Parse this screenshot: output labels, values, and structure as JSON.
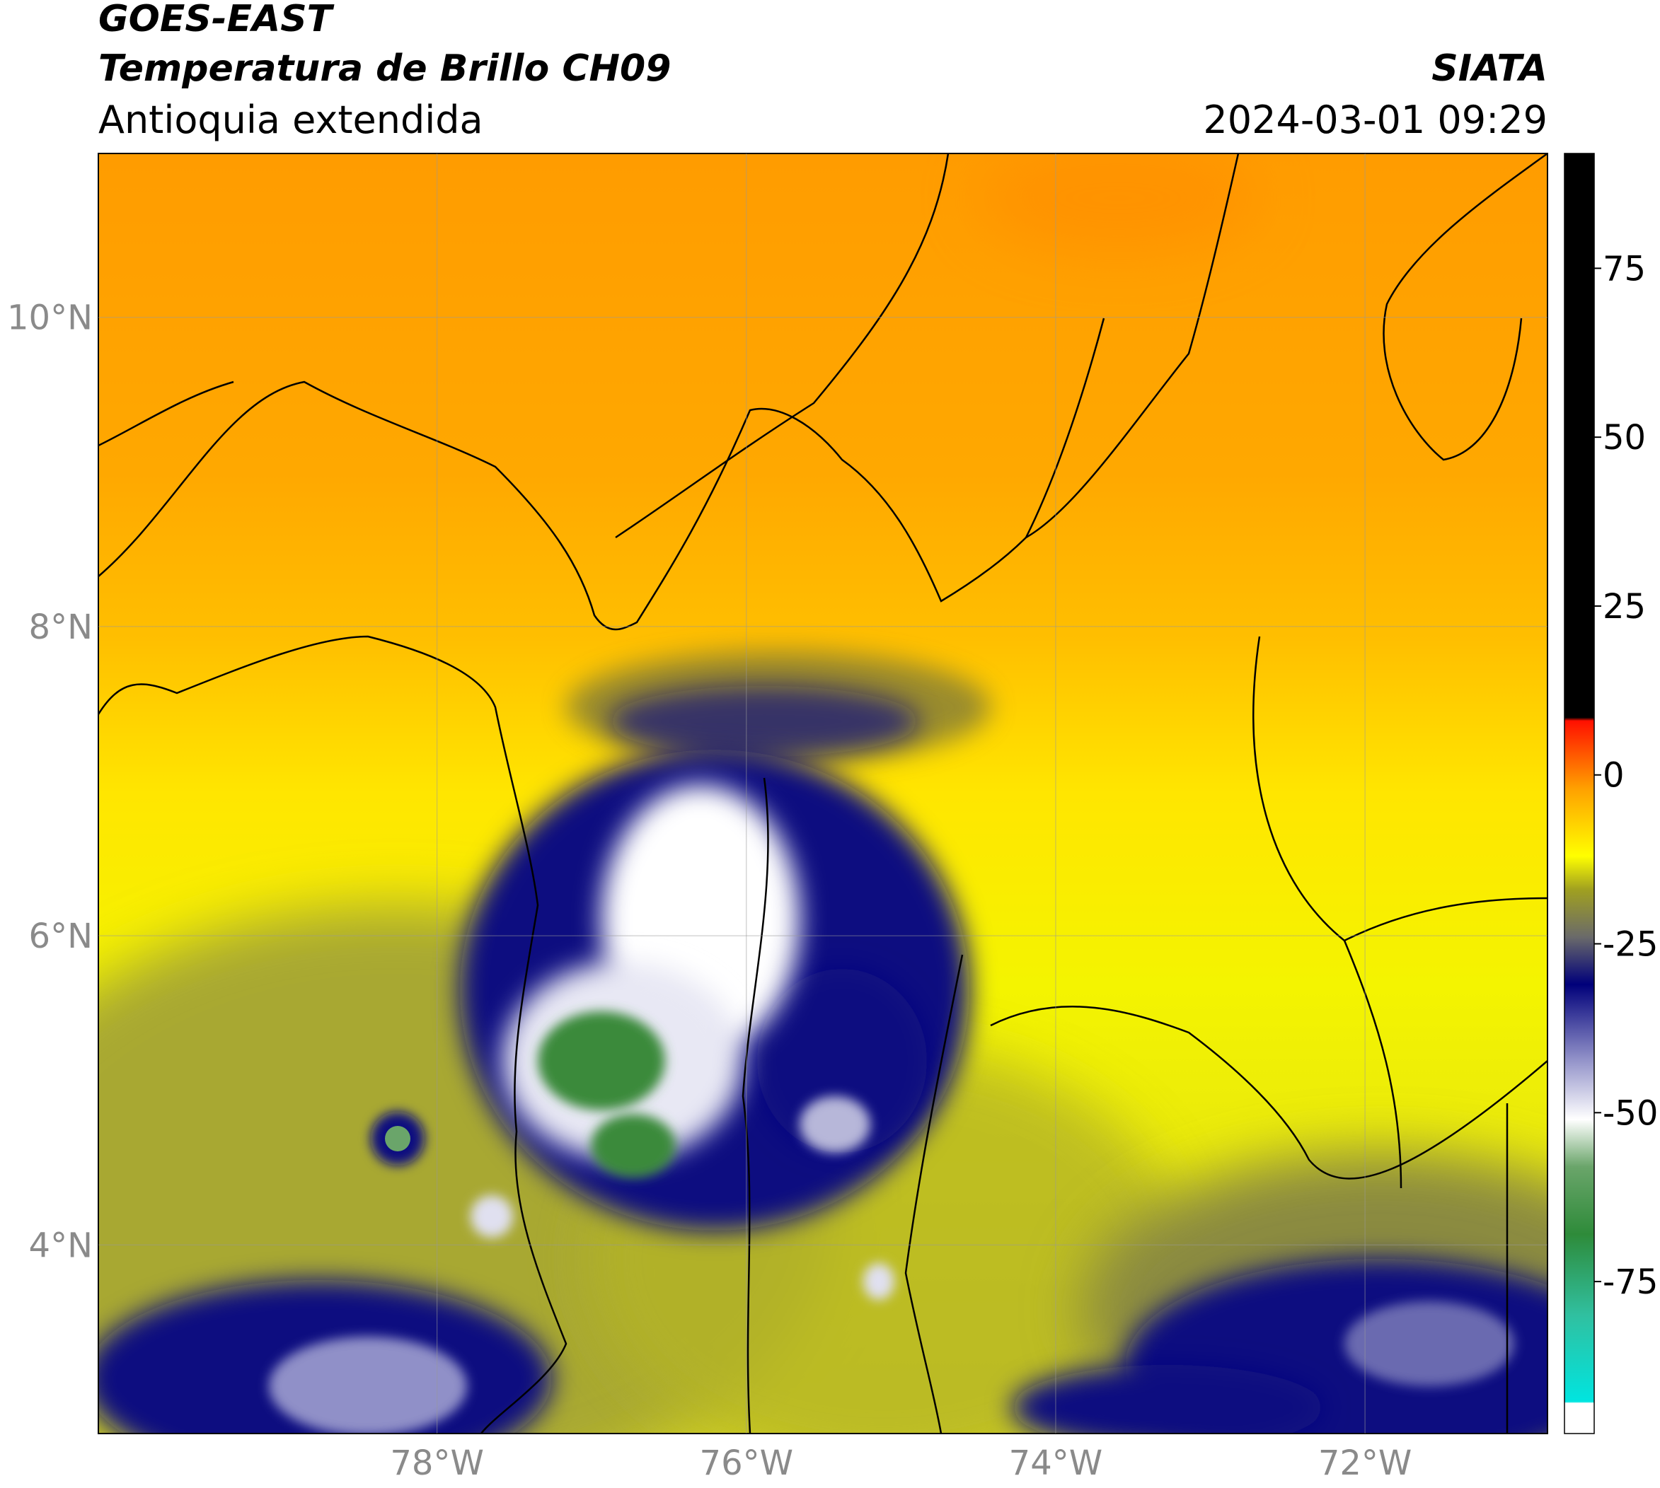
{
  "chart_data": {
    "type": "map",
    "title": [
      "GOES-EAST",
      "Temperatura de Brillo CH09"
    ],
    "subtitle": "Antioquia extendida",
    "source": "SIATA",
    "date": "2024-03-01 09:29",
    "xlim": [
      -80.19,
      -70.82
    ],
    "ylim": [
      2.78,
      11.06
    ],
    "xticks": [
      {
        "value": -78,
        "label": "78°W"
      },
      {
        "value": -76,
        "label": "76°W"
      },
      {
        "value": -74,
        "label": "74°W"
      },
      {
        "value": -72,
        "label": "72°W"
      }
    ],
    "yticks": [
      {
        "value": 4,
        "label": "4°N"
      },
      {
        "value": 6,
        "label": "6°N"
      },
      {
        "value": 8,
        "label": "8°N"
      },
      {
        "value": 10,
        "label": "10°N"
      }
    ],
    "grid": true,
    "colorbar": {
      "clim": [
        -97.5,
        92
      ],
      "ticks": [
        75,
        50,
        25,
        0,
        -25,
        -50,
        -75
      ],
      "colormap": [
        [
          -97.5,
          "#ffffff"
        ],
        [
          -93,
          "#ffffff"
        ],
        [
          -92.8,
          "#00e5e0"
        ],
        [
          -80,
          "#30c0a0"
        ],
        [
          -68,
          "#2e8b3a"
        ],
        [
          -58,
          "#6aa56a"
        ],
        [
          -51,
          "#ffffff"
        ],
        [
          -42,
          "#9090c8"
        ],
        [
          -31,
          "#00007a"
        ],
        [
          -24,
          "#6a6a6a"
        ],
        [
          -17,
          "#a0a020"
        ],
        [
          -12,
          "#ffff00"
        ],
        [
          -2,
          "#ffa000"
        ],
        [
          8,
          "#ff1000"
        ],
        [
          8.5,
          "#000000"
        ],
        [
          92,
          "#000000"
        ]
      ]
    }
  }
}
